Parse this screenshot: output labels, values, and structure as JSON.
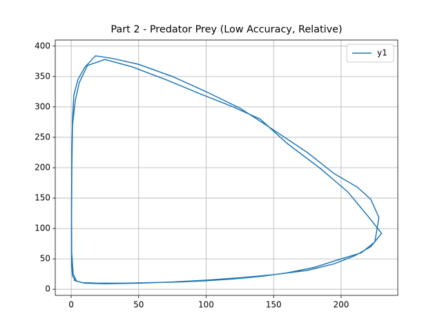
{
  "chart_data": {
    "type": "line",
    "title": "Part 2 - Predator Prey (Low Accuracy, Relative)",
    "series": [
      {
        "name": "y1",
        "color": "#1f77b4",
        "x": [
          2,
          8,
          20,
          40,
          60,
          80,
          100,
          120,
          140,
          160,
          180,
          200,
          215,
          225,
          228,
          222,
          212,
          195,
          175,
          150,
          125,
          100,
          75,
          50,
          30,
          18,
          10,
          5,
          2,
          1,
          0.5,
          0.3,
          0.2,
          0.3,
          1,
          3,
          10,
          25,
          50,
          75,
          100,
          125,
          150,
          175,
          195,
          210,
          222,
          230,
          220,
          205,
          185,
          160,
          140,
          120,
          95,
          70,
          45,
          25,
          12,
          6,
          3,
          1,
          0.5,
          0.3,
          0.4,
          1.5,
          4
        ],
        "values": [
          15,
          11,
          10,
          10,
          11,
          12,
          14,
          17,
          21,
          27,
          36,
          50,
          60,
          78,
          118,
          148,
          168,
          190,
          225,
          262,
          298,
          325,
          350,
          370,
          380,
          384,
          365,
          345,
          320,
          280,
          230,
          150,
          80,
          40,
          22,
          14,
          10,
          9,
          10,
          12,
          15,
          19,
          24,
          31,
          42,
          55,
          70,
          92,
          120,
          160,
          198,
          240,
          280,
          300,
          322,
          345,
          366,
          378,
          368,
          340,
          310,
          270,
          200,
          120,
          60,
          25,
          13
        ]
      }
    ],
    "xlim": [
      -11.8,
      242
    ],
    "ylim": [
      -10,
      410
    ],
    "xticks": [
      0,
      50,
      100,
      150,
      200
    ],
    "yticks": [
      0,
      50,
      100,
      150,
      200,
      250,
      300,
      350,
      400
    ],
    "grid": true,
    "legend": "upper right"
  }
}
